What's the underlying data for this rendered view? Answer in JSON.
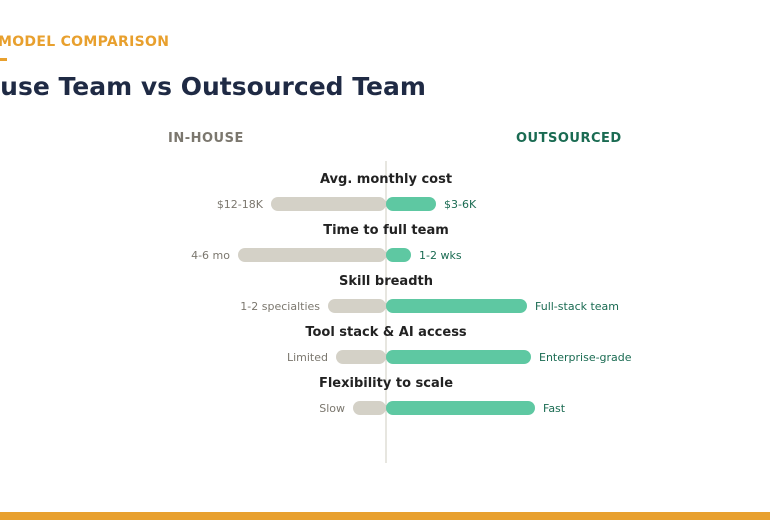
{
  "header": {
    "eyebrow": "MODEL COMPARISON",
    "title": "ouse Team vs Outsourced Team"
  },
  "columns": {
    "left": "IN-HOUSE",
    "right": "OUTSOURCED"
  },
  "colors": {
    "accent": "#e8a02e",
    "title": "#1f2a44",
    "inhouse_bar": "#d4d1c7",
    "outsourced_bar": "#5ec8a2",
    "inhouse_label": "#7b776e",
    "outsourced_label": "#1a6b52",
    "axis": "#cfccc2"
  },
  "chart_data": {
    "type": "bar",
    "orientation": "horizontal-diverging",
    "value_scale": "relative",
    "categories": [
      "Avg. monthly cost",
      "Time to full team",
      "Skill breadth",
      "Tool stack & AI access",
      "Flexibility to scale"
    ],
    "series": [
      {
        "name": "IN-HOUSE",
        "direction": "left",
        "values": [
          115,
          148,
          58,
          50,
          33
        ],
        "labels": [
          "$12-18K",
          "4-6 mo",
          "1-2 specialties",
          "Limited",
          "Slow"
        ]
      },
      {
        "name": "OUTSOURCED",
        "direction": "right",
        "values": [
          50,
          25,
          141,
          145,
          149
        ],
        "labels": [
          "$3-6K",
          "1-2 wks",
          "Full-stack team",
          "Enterprise-grade",
          "Fast"
        ]
      }
    ],
    "grid": false,
    "legend": "top"
  }
}
